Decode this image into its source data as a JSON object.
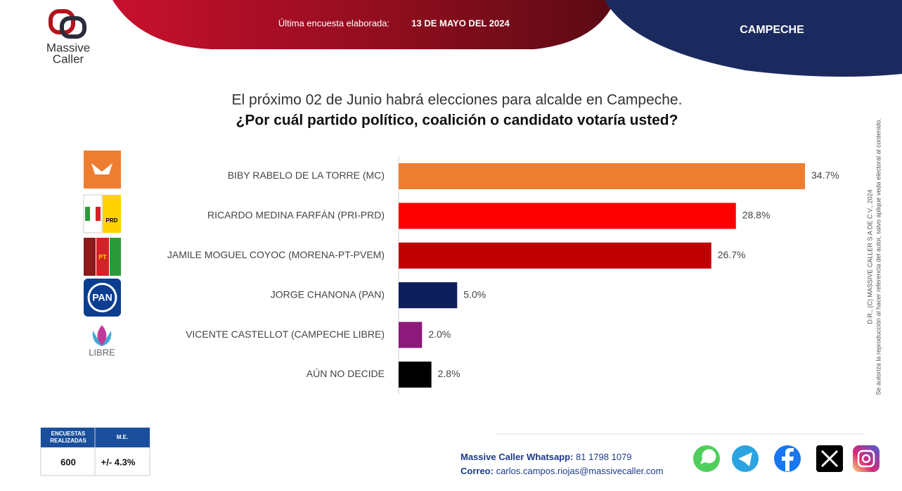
{
  "header": {
    "brand": [
      "Massive",
      "Caller"
    ],
    "survey_label": "Última encuesta elaborada:",
    "survey_date": "13 DE MAYO DEL 2024",
    "region": "CAMPECHE"
  },
  "chart_data": {
    "type": "bar",
    "orientation": "horizontal",
    "title": "El próximo 02 de Junio habrá elecciones para alcalde en Campeche.",
    "subtitle": "¿Por cuál partido político, coalición o candidato votaría usted?",
    "categories": [
      "BIBY RABELO DE LA TORRE (MC)",
      "RICARDO MEDINA FARFÁN (PRI-PRD)",
      "JAMILE MOGUEL COYOC (MORENA-PT-PVEM)",
      "JORGE CHANONA (PAN)",
      "VICENTE CASTELLOT (CAMPECHE LIBRE)",
      "AÚN NO DECIDE"
    ],
    "values": [
      34.7,
      28.8,
      26.7,
      5.0,
      2.0,
      2.8
    ],
    "value_labels": [
      "34.7%",
      "28.8%",
      "26.7%",
      "5.0%",
      "2.0%",
      "2.8%"
    ],
    "colors": [
      "#ed7d31",
      "#ff0000",
      "#c00000",
      "#0f1f5c",
      "#8b1a7a",
      "#000000"
    ]
  },
  "party_logos": {
    "prd": "PRD",
    "pt": "PT",
    "pan": "PAN",
    "libre": "LIBRE"
  },
  "footer": {
    "table_headers": [
      [
        "ENCUESTAS",
        "REALIZADAS"
      ],
      "M.E."
    ],
    "table_row": [
      "600",
      "+/- 4.3%"
    ],
    "whatsapp_label": "Massive Caller Whatsapp:",
    "whatsapp": "81 1798 1079",
    "email_label": "Correo:",
    "email": "carlos.campos.riojas@massivecaller.com",
    "disclaimer": [
      "D.R., (C) MASSIVE CALLER S.A DE C.V., 2024",
      "Se autoriza la reproducción al hacer referencia del autor, salvo aplique veda electoral al contenido."
    ]
  }
}
